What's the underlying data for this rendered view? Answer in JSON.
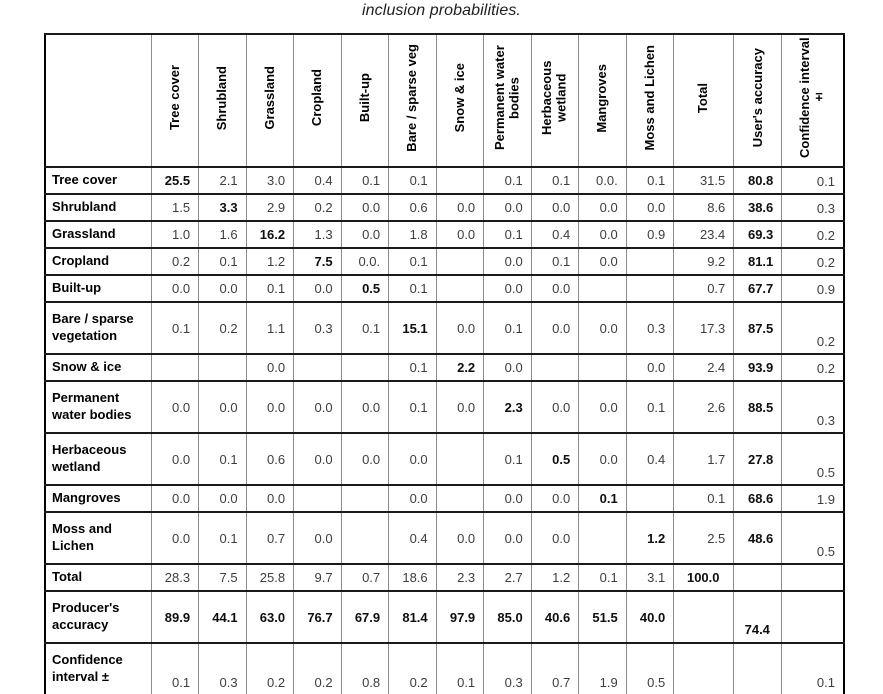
{
  "caption": "inclusion probabilities.",
  "table": {
    "columns": [
      "Tree cover",
      "Shrubland",
      "Grassland",
      "Cropland",
      "Built-up",
      "Bare / sparse veg",
      "Snow & ice",
      "Permanent water bodies",
      "Herbaceous wetland",
      "Mangroves",
      "Moss and Lichen",
      "Total",
      "User's accuracy",
      "Confidence interval ±"
    ],
    "rows": [
      {
        "label": "Tree cover",
        "cells": [
          "25.5",
          "2.1",
          "3.0",
          "0.4",
          "0.1",
          "0.1",
          "",
          "0.1",
          "0.1",
          "0.0.",
          "0.1",
          "31.5",
          "80.8",
          "0.1"
        ],
        "bold": [
          0,
          12
        ]
      },
      {
        "label": "Shrubland",
        "cells": [
          "1.5",
          "3.3",
          "2.9",
          "0.2",
          "0.0",
          "0.6",
          "0.0",
          "0.0",
          "0.0",
          "0.0",
          "0.0",
          "8.6",
          "38.6",
          "0.3"
        ],
        "bold": [
          1,
          12
        ]
      },
      {
        "label": "Grassland",
        "cells": [
          "1.0",
          "1.6",
          "16.2",
          "1.3",
          "0.0",
          "1.8",
          "0.0",
          "0.1",
          "0.4",
          "0.0",
          "0.9",
          "23.4",
          "69.3",
          "0.2"
        ],
        "bold": [
          2,
          12
        ]
      },
      {
        "label": "Cropland",
        "cells": [
          "0.2",
          "0.1",
          "1.2",
          "7.5",
          "0.0.",
          "0.1",
          "",
          "0.0",
          "0.1",
          "0.0",
          "",
          "9.2",
          "81.1",
          "0.2"
        ],
        "bold": [
          3,
          12
        ]
      },
      {
        "label": "Built-up",
        "cells": [
          "0.0",
          "0.0",
          "0.1",
          "0.0",
          "0.5",
          "0.1",
          "",
          "0.0",
          "0.0",
          "",
          "",
          "0.7",
          "67.7",
          "0.9"
        ],
        "bold": [
          4,
          12
        ]
      },
      {
        "label": "Bare / sparse vegetation",
        "cells": [
          "0.1",
          "0.2",
          "1.1",
          "0.3",
          "0.1",
          "15.1",
          "0.0",
          "0.1",
          "0.0",
          "0.0",
          "0.3",
          "17.3",
          "87.5",
          "0.2"
        ],
        "bold": [
          5,
          12
        ]
      },
      {
        "label": "Snow & ice",
        "cells": [
          "",
          "",
          "0.0",
          "",
          "",
          "0.1",
          "2.2",
          "0.0",
          "",
          "",
          "0.0",
          "2.4",
          "93.9",
          "0.2"
        ],
        "bold": [
          6,
          12
        ]
      },
      {
        "label": "Permanent water bodies",
        "cells": [
          "0.0",
          "0.0",
          "0.0",
          "0.0",
          "0.0",
          "0.1",
          "0.0",
          "2.3",
          "0.0",
          "0.0",
          "0.1",
          "2.6",
          "88.5",
          "0.3"
        ],
        "bold": [
          7,
          12
        ]
      },
      {
        "label": "Herbaceous wetland",
        "cells": [
          "0.0",
          "0.1",
          "0.6",
          "0.0",
          "0.0",
          "0.0",
          "",
          "0.1",
          "0.5",
          "0.0",
          "0.4",
          "1.7",
          "27.8",
          "0.5"
        ],
        "bold": [
          8,
          12
        ]
      },
      {
        "label": "Mangroves",
        "cells": [
          "0.0",
          "0.0",
          "0.0",
          "",
          "",
          "0.0",
          "",
          "0.0",
          "0.0",
          "0.1",
          "",
          "0.1",
          "68.6",
          "1.9"
        ],
        "bold": [
          9,
          12
        ]
      },
      {
        "label": "Moss and Lichen",
        "cells": [
          "0.0",
          "0.1",
          "0.7",
          "0.0",
          "",
          "0.4",
          "0.0",
          "0.0",
          "0.0",
          "",
          "1.2",
          "2.5",
          "48.6",
          "0.5"
        ],
        "bold": [
          10,
          12
        ]
      },
      {
        "label": "Total",
        "cells": [
          "28.3",
          "7.5",
          "25.8",
          "9.7",
          "0.7",
          "18.6",
          "2.3",
          "2.7",
          "1.2",
          "0.1",
          "3.1",
          "100.0",
          "",
          ""
        ],
        "bold": [
          11
        ]
      },
      {
        "label": "Producer's accuracy",
        "cells": [
          "89.9",
          "44.1",
          "63.0",
          "76.7",
          "67.9",
          "81.4",
          "97.9",
          "85.0",
          "40.6",
          "51.5",
          "40.0",
          "",
          "74.4",
          ""
        ],
        "bold": [
          0,
          1,
          2,
          3,
          4,
          5,
          6,
          7,
          8,
          9,
          10,
          12
        ]
      },
      {
        "label": "Confidence interval ±",
        "cells": [
          "0.1",
          "0.3",
          "0.2",
          "0.2",
          "0.8",
          "0.2",
          "0.1",
          "0.3",
          "0.7",
          "1.9",
          "0.5",
          "",
          "",
          "0.1"
        ],
        "bold": []
      }
    ]
  }
}
